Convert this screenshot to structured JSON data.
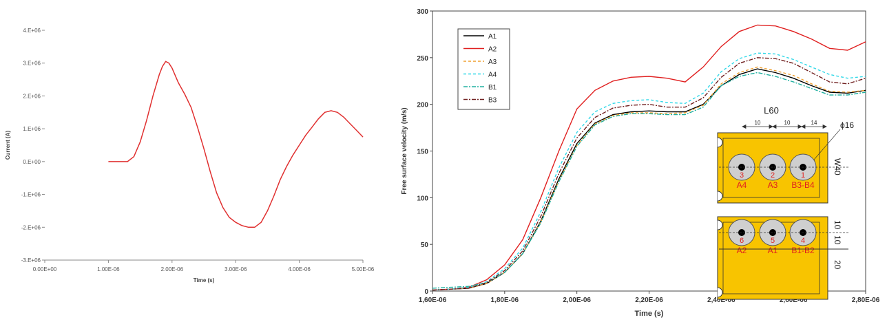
{
  "chart_data": [
    {
      "type": "line",
      "title": "",
      "xlabel": "Time (s)",
      "ylabel": "Current (A)",
      "xlim": [
        0,
        5e-06
      ],
      "ylim": [
        -3000000.0,
        4000000.0
      ],
      "x_tick_labels": [
        "0.00E+00",
        "1.00E-06",
        "2.00E-06",
        "3.00E-06",
        "4.00E-06",
        "5.00E-06"
      ],
      "y_tick_labels": [
        "4.E+06",
        "3.E+06",
        "2.E+06",
        "1.E+06",
        "0.E+00",
        "-1.E+06",
        "-2.E+06",
        "-3.E+06"
      ],
      "grid": false,
      "legend": "none",
      "series": [
        {
          "color": "#e03030",
          "x": [
            1e-06,
            1.2e-06,
            1.3e-06,
            1.4e-06,
            1.5e-06,
            1.6e-06,
            1.7e-06,
            1.8e-06,
            1.85e-06,
            1.9e-06,
            1.95e-06,
            2e-06,
            2.1e-06,
            2.2e-06,
            2.3e-06,
            2.4e-06,
            2.5e-06,
            2.6e-06,
            2.7e-06,
            2.8e-06,
            2.9e-06,
            3e-06,
            3.1e-06,
            3.2e-06,
            3.3e-06,
            3.4e-06,
            3.5e-06,
            3.6e-06,
            3.7e-06,
            3.8e-06,
            3.9e-06,
            4e-06,
            4.1e-06,
            4.2e-06,
            4.3e-06,
            4.4e-06,
            4.5e-06,
            4.6e-06,
            4.7e-06,
            4.8e-06,
            4.9e-06,
            5e-06
          ],
          "y": [
            0.0,
            0.0,
            0.0,
            150000.0,
            600000.0,
            1250000.0,
            2000000.0,
            2650000.0,
            2900000.0,
            3050000.0,
            3000000.0,
            2850000.0,
            2400000.0,
            2050000.0,
            1650000.0,
            1050000.0,
            400000.0,
            -300000.0,
            -950000.0,
            -1400000.0,
            -1700000.0,
            -1850000.0,
            -1950000.0,
            -2000000.0,
            -2000000.0,
            -1850000.0,
            -1500000.0,
            -1050000.0,
            -550000.0,
            -150000.0,
            200000.0,
            500000.0,
            800000.0,
            1050000.0,
            1300000.0,
            1500000.0,
            1550000.0,
            1500000.0,
            1350000.0,
            1150000.0,
            950000.0,
            750000.0
          ]
        }
      ]
    },
    {
      "type": "line",
      "title": "",
      "xlabel": "Time (s)",
      "ylabel": "Free surface velocity (m/s)",
      "xlim": [
        1.6e-06,
        2.8e-06
      ],
      "ylim": [
        0,
        300
      ],
      "x_tick_labels": [
        "1,60E-06",
        "1,80E-06",
        "2,00E-06",
        "2,20E-06",
        "2,40E-06",
        "2,60E-06",
        "2,80E-06"
      ],
      "y_tick_labels": [
        "0",
        "50",
        "100",
        "150",
        "200",
        "250",
        "300"
      ],
      "grid": false,
      "legend": "top-left",
      "x": [
        1.6e-06,
        1.65e-06,
        1.7e-06,
        1.75e-06,
        1.8e-06,
        1.85e-06,
        1.9e-06,
        1.95e-06,
        2e-06,
        2.05e-06,
        2.1e-06,
        2.15e-06,
        2.2e-06,
        2.25e-06,
        2.3e-06,
        2.35e-06,
        2.4e-06,
        2.45e-06,
        2.5e-06,
        2.55e-06,
        2.6e-06,
        2.65e-06,
        2.7e-06,
        2.75e-06,
        2.8e-06
      ],
      "series": [
        {
          "name": "A1",
          "color": "#000000",
          "dash": "solid",
          "values": [
            1,
            2,
            3,
            8,
            20,
            40,
            75,
            120,
            158,
            180,
            189,
            192,
            193,
            192,
            192,
            200,
            220,
            232,
            238,
            234,
            228,
            220,
            213,
            212,
            215
          ]
        },
        {
          "name": "A2",
          "color": "#e02020",
          "dash": "solid",
          "values": [
            1,
            2,
            4,
            12,
            28,
            55,
            100,
            150,
            195,
            215,
            225,
            229,
            230,
            228,
            224,
            240,
            262,
            278,
            285,
            284,
            278,
            270,
            260,
            258,
            267
          ]
        },
        {
          "name": "A3",
          "color": "#f0a030",
          "dash": "dashed",
          "values": [
            1,
            2,
            3,
            8,
            20,
            40,
            74,
            118,
            156,
            179,
            188,
            191,
            191,
            190,
            191,
            199,
            222,
            234,
            240,
            236,
            231,
            222,
            214,
            213,
            215
          ]
        },
        {
          "name": "A4",
          "color": "#30d8e8",
          "dash": "dashed",
          "values": [
            1,
            2,
            4,
            10,
            24,
            46,
            85,
            132,
            170,
            192,
            201,
            204,
            205,
            202,
            201,
            212,
            235,
            249,
            255,
            254,
            248,
            240,
            232,
            228,
            230
          ]
        },
        {
          "name": "B1",
          "color": "#20b0a0",
          "dash": "dashdot",
          "values": [
            3,
            4,
            5,
            9,
            20,
            40,
            73,
            117,
            155,
            178,
            187,
            190,
            190,
            189,
            189,
            197,
            220,
            230,
            234,
            230,
            224,
            217,
            210,
            210,
            213
          ]
        },
        {
          "name": "B3",
          "color": "#702020",
          "dash": "dashdot",
          "values": [
            1,
            2,
            3,
            9,
            22,
            43,
            80,
            126,
            164,
            186,
            196,
            199,
            200,
            197,
            197,
            207,
            229,
            244,
            250,
            249,
            244,
            234,
            224,
            222,
            228
          ]
        }
      ]
    }
  ],
  "specimen_inset": {
    "label_length": "L60",
    "label_width": "W40",
    "label_diameter": "ϕ16",
    "dim_spacing_1": "10",
    "dim_spacing_2": "10",
    "dim_spacing_3": "14",
    "dim_right_upper": "10",
    "dim_right_lower": "20",
    "top_row": [
      {
        "num": "3",
        "probe": "A4"
      },
      {
        "num": "2",
        "probe": "A3"
      },
      {
        "num": "1",
        "probe": "B3-B4"
      }
    ],
    "bottom_row": [
      {
        "num": "6",
        "probe": "A2"
      },
      {
        "num": "5",
        "probe": "A1"
      },
      {
        "num": "4",
        "probe": "B1-B2"
      }
    ],
    "colors": {
      "plate": "#f8c400",
      "hole": "#cfcfcf",
      "label": "#e02020"
    }
  }
}
